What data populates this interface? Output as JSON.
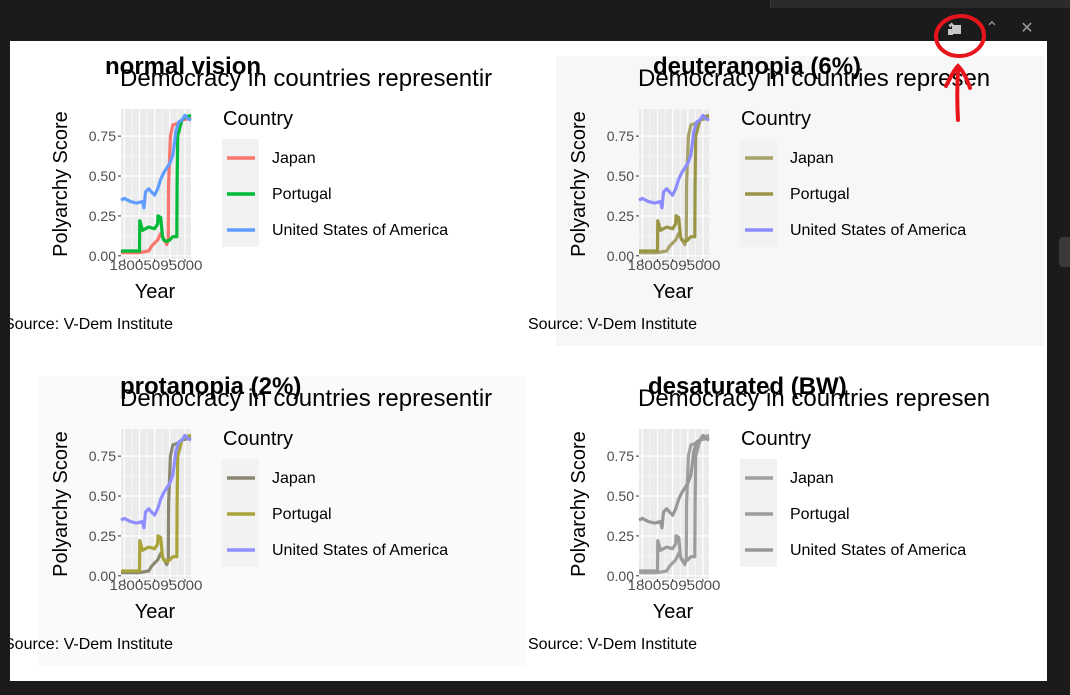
{
  "toolbar": {
    "icons": [
      "zoom-icon",
      "maximize-icon",
      "close-icon"
    ],
    "maximize_glyph": "⌃",
    "close_glyph": "✕"
  },
  "annotation": {
    "color": "#e8141c"
  },
  "plot_panel": {
    "source_text": "Source: V-Dem Institute"
  },
  "chart_data": [
    {
      "type": "line",
      "panel_title": "normal vision",
      "title": "Democracy in countries representir",
      "xlabel": "Year",
      "ylabel": "Polyarchy Score",
      "yticks": [
        "0.00",
        "0.25",
        "0.50",
        "0.75"
      ],
      "xticks_label": "18005095000",
      "xlim": [
        1789,
        2020
      ],
      "ylim": [
        -0.02,
        0.92
      ],
      "legend_title": "Country",
      "caption": "Source: V-Dem Institute",
      "series": [
        {
          "name": "Japan",
          "color": "#f8766d",
          "x": [
            1789,
            1850,
            1880,
            1890,
            1900,
            1910,
            1920,
            1932,
            1940,
            1945,
            1946,
            1952,
            1960,
            1975,
            1990,
            2010,
            2020
          ],
          "values": [
            0.02,
            0.02,
            0.03,
            0.06,
            0.08,
            0.1,
            0.14,
            0.1,
            0.07,
            0.1,
            0.45,
            0.75,
            0.82,
            0.83,
            0.85,
            0.86,
            0.86
          ]
        },
        {
          "name": "Portugal",
          "color": "#00ba38",
          "x": [
            1789,
            1850,
            1851,
            1860,
            1880,
            1900,
            1910,
            1911,
            1920,
            1926,
            1930,
            1940,
            1950,
            1960,
            1973,
            1974,
            1976,
            1990,
            2000,
            2020
          ],
          "values": [
            0.03,
            0.03,
            0.22,
            0.16,
            0.18,
            0.17,
            0.2,
            0.25,
            0.24,
            0.12,
            0.1,
            0.09,
            0.1,
            0.12,
            0.12,
            0.45,
            0.75,
            0.85,
            0.87,
            0.88
          ]
        },
        {
          "name": "United States of America",
          "color": "#619cff",
          "x": [
            1789,
            1800,
            1820,
            1840,
            1860,
            1865,
            1870,
            1880,
            1890,
            1900,
            1910,
            1920,
            1930,
            1940,
            1950,
            1960,
            1965,
            1970,
            1980,
            1990,
            2000,
            2010,
            2020
          ],
          "values": [
            0.35,
            0.36,
            0.34,
            0.33,
            0.34,
            0.3,
            0.4,
            0.42,
            0.4,
            0.38,
            0.42,
            0.48,
            0.52,
            0.55,
            0.58,
            0.63,
            0.7,
            0.78,
            0.84,
            0.85,
            0.88,
            0.86,
            0.85
          ]
        }
      ]
    },
    {
      "type": "line",
      "panel_title": "deuteranopia (6%)",
      "title": "Democracy in countries represen",
      "xlabel": "Year",
      "ylabel": "Polyarchy Score",
      "yticks": [
        "0.00",
        "0.25",
        "0.50",
        "0.75"
      ],
      "xticks_label": "18005095000",
      "xlim": [
        1789,
        2020
      ],
      "ylim": [
        -0.02,
        0.92
      ],
      "legend_title": "Country",
      "caption": "Source: V-Dem Institute",
      "series": [
        {
          "name": "Japan",
          "color": "#a6a26a",
          "x": [
            1789,
            1850,
            1880,
            1890,
            1900,
            1910,
            1920,
            1932,
            1940,
            1945,
            1946,
            1952,
            1960,
            1975,
            1990,
            2010,
            2020
          ],
          "values": [
            0.02,
            0.02,
            0.03,
            0.06,
            0.08,
            0.1,
            0.14,
            0.1,
            0.07,
            0.1,
            0.45,
            0.75,
            0.82,
            0.83,
            0.85,
            0.86,
            0.86
          ]
        },
        {
          "name": "Portugal",
          "color": "#9a9545",
          "x": [
            1789,
            1850,
            1851,
            1860,
            1880,
            1900,
            1910,
            1911,
            1920,
            1926,
            1930,
            1940,
            1950,
            1960,
            1973,
            1974,
            1976,
            1990,
            2000,
            2020
          ],
          "values": [
            0.03,
            0.03,
            0.22,
            0.16,
            0.18,
            0.17,
            0.2,
            0.25,
            0.24,
            0.12,
            0.1,
            0.09,
            0.1,
            0.12,
            0.12,
            0.45,
            0.75,
            0.85,
            0.87,
            0.88
          ]
        },
        {
          "name": "United States of America",
          "color": "#8c8cff",
          "x": [
            1789,
            1800,
            1820,
            1840,
            1860,
            1865,
            1870,
            1880,
            1890,
            1900,
            1910,
            1920,
            1930,
            1940,
            1950,
            1960,
            1965,
            1970,
            1980,
            1990,
            2000,
            2010,
            2020
          ],
          "values": [
            0.35,
            0.36,
            0.34,
            0.33,
            0.34,
            0.3,
            0.4,
            0.42,
            0.4,
            0.38,
            0.42,
            0.48,
            0.52,
            0.55,
            0.58,
            0.63,
            0.7,
            0.78,
            0.84,
            0.85,
            0.88,
            0.86,
            0.85
          ]
        }
      ]
    },
    {
      "type": "line",
      "panel_title": "protanopia (2%)",
      "title": "Democracy in countries representir",
      "xlabel": "Year",
      "ylabel": "Polyarchy Score",
      "yticks": [
        "0.00",
        "0.25",
        "0.50",
        "0.75"
      ],
      "xticks_label": "18005095000",
      "xlim": [
        1789,
        2020
      ],
      "ylim": [
        -0.02,
        0.92
      ],
      "legend_title": "Country",
      "caption": "Source: V-Dem Institute",
      "series": [
        {
          "name": "Japan",
          "color": "#8a8870",
          "x": [
            1789,
            1850,
            1880,
            1890,
            1900,
            1910,
            1920,
            1932,
            1940,
            1945,
            1946,
            1952,
            1960,
            1975,
            1990,
            2010,
            2020
          ],
          "values": [
            0.02,
            0.02,
            0.03,
            0.06,
            0.08,
            0.1,
            0.14,
            0.1,
            0.07,
            0.1,
            0.45,
            0.75,
            0.82,
            0.83,
            0.85,
            0.86,
            0.86
          ]
        },
        {
          "name": "Portugal",
          "color": "#a9a33a",
          "x": [
            1789,
            1850,
            1851,
            1860,
            1880,
            1900,
            1910,
            1911,
            1920,
            1926,
            1930,
            1940,
            1950,
            1960,
            1973,
            1974,
            1976,
            1990,
            2000,
            2020
          ],
          "values": [
            0.03,
            0.03,
            0.22,
            0.16,
            0.18,
            0.17,
            0.2,
            0.25,
            0.24,
            0.12,
            0.1,
            0.09,
            0.1,
            0.12,
            0.12,
            0.45,
            0.75,
            0.85,
            0.87,
            0.88
          ]
        },
        {
          "name": "United States of America",
          "color": "#8f8fff",
          "x": [
            1789,
            1800,
            1820,
            1840,
            1860,
            1865,
            1870,
            1880,
            1890,
            1900,
            1910,
            1920,
            1930,
            1940,
            1950,
            1960,
            1965,
            1970,
            1980,
            1990,
            2000,
            2010,
            2020
          ],
          "values": [
            0.35,
            0.36,
            0.34,
            0.33,
            0.34,
            0.3,
            0.4,
            0.42,
            0.4,
            0.38,
            0.42,
            0.48,
            0.52,
            0.55,
            0.58,
            0.63,
            0.7,
            0.78,
            0.84,
            0.85,
            0.88,
            0.86,
            0.85
          ]
        }
      ]
    },
    {
      "type": "line",
      "panel_title": "desaturated (BW)",
      "title": "Democracy in countries represen",
      "xlabel": "Year",
      "ylabel": "Polyarchy Score",
      "yticks": [
        "0.00",
        "0.25",
        "0.50",
        "0.75"
      ],
      "xticks_label": "18005095000",
      "xlim": [
        1789,
        2020
      ],
      "ylim": [
        -0.02,
        0.92
      ],
      "legend_title": "Country",
      "caption": "Source: V-Dem Institute",
      "series": [
        {
          "name": "Japan",
          "color": "#a0a0a0",
          "x": [
            1789,
            1850,
            1880,
            1890,
            1900,
            1910,
            1920,
            1932,
            1940,
            1945,
            1946,
            1952,
            1960,
            1975,
            1990,
            2010,
            2020
          ],
          "values": [
            0.02,
            0.02,
            0.03,
            0.06,
            0.08,
            0.1,
            0.14,
            0.1,
            0.07,
            0.1,
            0.45,
            0.75,
            0.82,
            0.83,
            0.85,
            0.86,
            0.86
          ]
        },
        {
          "name": "Portugal",
          "color": "#9c9c9c",
          "x": [
            1789,
            1850,
            1851,
            1860,
            1880,
            1900,
            1910,
            1911,
            1920,
            1926,
            1930,
            1940,
            1950,
            1960,
            1973,
            1974,
            1976,
            1990,
            2000,
            2020
          ],
          "values": [
            0.03,
            0.03,
            0.22,
            0.16,
            0.18,
            0.17,
            0.2,
            0.25,
            0.24,
            0.12,
            0.1,
            0.09,
            0.1,
            0.12,
            0.12,
            0.45,
            0.75,
            0.85,
            0.87,
            0.88
          ]
        },
        {
          "name": "United States of America",
          "color": "#979797",
          "x": [
            1789,
            1800,
            1820,
            1840,
            1860,
            1865,
            1870,
            1880,
            1890,
            1900,
            1910,
            1920,
            1930,
            1940,
            1950,
            1960,
            1965,
            1970,
            1980,
            1990,
            2000,
            2010,
            2020
          ],
          "values": [
            0.35,
            0.36,
            0.34,
            0.33,
            0.34,
            0.3,
            0.4,
            0.42,
            0.4,
            0.38,
            0.42,
            0.48,
            0.52,
            0.55,
            0.58,
            0.63,
            0.7,
            0.78,
            0.84,
            0.85,
            0.88,
            0.86,
            0.85
          ]
        }
      ]
    }
  ]
}
